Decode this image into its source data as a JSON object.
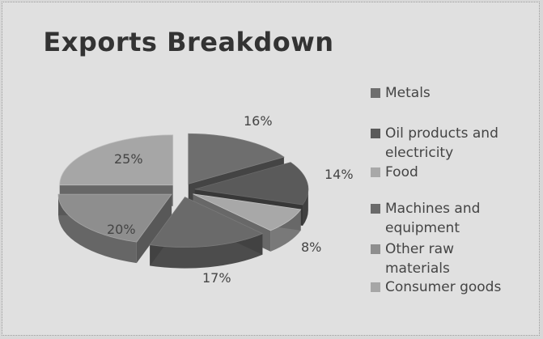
{
  "chart_data": {
    "type": "pie",
    "title": "Exports Breakdown",
    "categories": [
      "Metals",
      "Oil products and electricity",
      "Food",
      "Machines and equipment",
      "Other raw materials",
      "Consumer goods"
    ],
    "values": [
      16,
      14,
      8,
      17,
      20,
      25
    ],
    "data_labels": [
      "16%",
      "14%",
      "8%",
      "17%",
      "20%",
      "25%"
    ],
    "colors": [
      "#6e6e6e",
      "#5a5a5a",
      "#a8a8a8",
      "#6a6a6a",
      "#8e8e8e",
      "#a6a6a6"
    ],
    "exploded": true,
    "three_d": true,
    "legend_placement": "right"
  }
}
